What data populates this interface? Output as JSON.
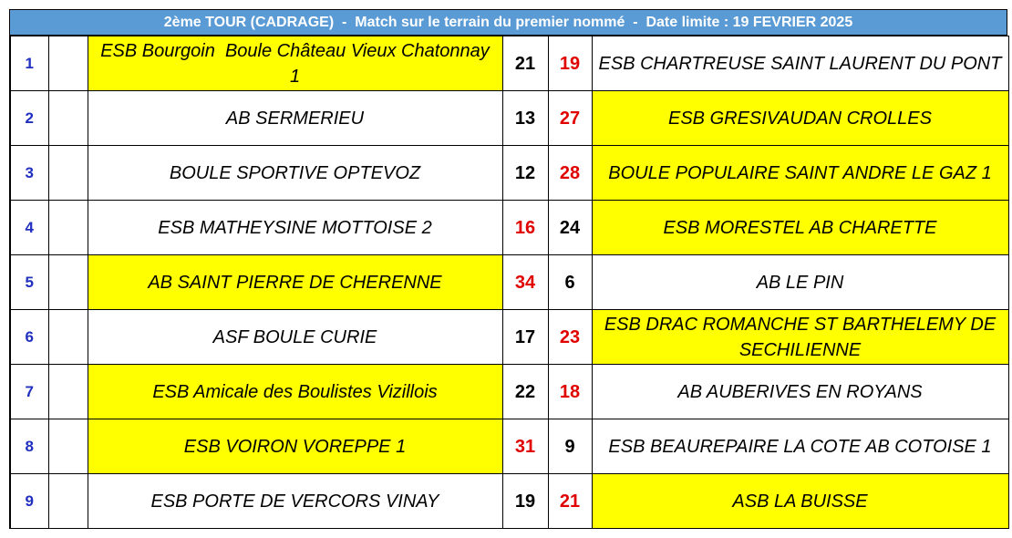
{
  "header": {
    "title": "2ème TOUR (CADRAGE)  -  Match sur le terrain du premier nommé  -  Date limite : 19 FEVRIER 2025",
    "color": "#5b9bd5"
  },
  "highlight_color": "#ffff00",
  "table": {
    "rows": [
      {
        "number": "1",
        "team1": "ESB Bourgoin  Boule Château Vieux Chatonnay 1",
        "score1": 21,
        "score2": 19,
        "team2": "ESB CHARTREUSE SAINT LAURENT DU PONT",
        "highlight": "team1",
        "score1_color": "#000000",
        "score2_color": "#e00000"
      },
      {
        "number": "2",
        "team1": "AB SERMERIEU",
        "score1": 13,
        "score2": 27,
        "team2": "ESB GRESIVAUDAN CROLLES",
        "highlight": "team2",
        "score1_color": "#000000",
        "score2_color": "#e00000"
      },
      {
        "number": "3",
        "team1": "BOULE SPORTIVE OPTEVOZ",
        "score1": 12,
        "score2": 28,
        "team2": "BOULE POPULAIRE SAINT ANDRE LE GAZ 1",
        "highlight": "team2",
        "score1_color": "#000000",
        "score2_color": "#e00000"
      },
      {
        "number": "4",
        "team1": "ESB MATHEYSINE MOTTOISE 2",
        "score1": 16,
        "score2": 24,
        "team2": "ESB MORESTEL AB CHARETTE",
        "highlight": "team2",
        "score1_color": "#e00000",
        "score2_color": "#000000"
      },
      {
        "number": "5",
        "team1": "AB SAINT PIERRE DE CHERENNE",
        "score1": 34,
        "score2": 6,
        "team2": "AB LE PIN",
        "highlight": "team1",
        "score1_color": "#e00000",
        "score2_color": "#000000"
      },
      {
        "number": "6",
        "team1": "ASF BOULE CURIE",
        "score1": 17,
        "score2": 23,
        "team2": "ESB DRAC ROMANCHE ST BARTHELEMY DE SECHILIENNE",
        "highlight": "team2",
        "score1_color": "#000000",
        "score2_color": "#e00000"
      },
      {
        "number": "7",
        "team1": "ESB Amicale des Boulistes Vizillois",
        "score1": 22,
        "score2": 18,
        "team2": "AB AUBERIVES EN ROYANS",
        "highlight": "team1",
        "score1_color": "#000000",
        "score2_color": "#e00000"
      },
      {
        "number": "8",
        "team1": "ESB VOIRON VOREPPE 1",
        "score1": 31,
        "score2": 9,
        "team2": "ESB BEAUREPAIRE LA COTE AB COTOISE 1",
        "highlight": "team1",
        "score1_color": "#e00000",
        "score2_color": "#000000"
      },
      {
        "number": "9",
        "team1": "ESB PORTE DE VERCORS VINAY",
        "score1": 19,
        "score2": 21,
        "team2": "ASB LA BUISSE",
        "highlight": "team2",
        "score1_color": "#000000",
        "score2_color": "#e00000"
      }
    ]
  }
}
